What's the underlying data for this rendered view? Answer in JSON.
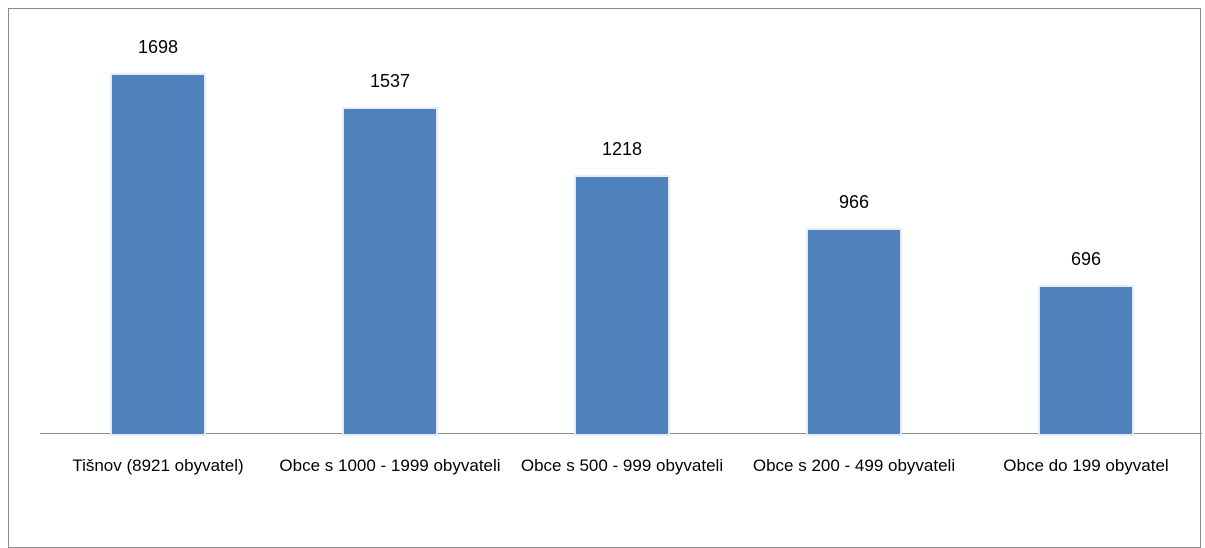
{
  "chart_data": {
    "type": "bar",
    "categories": [
      "Tišnov (8921 obyvatel)",
      "Obce s 1000 - 1999 obyvateli",
      "Obce s 500 - 999 obyvateli",
      "Obce s 200 - 499 obyvateli",
      "Obce do 199 obyvatel"
    ],
    "values": [
      1698,
      1537,
      1218,
      966,
      696
    ],
    "color": "#4f81bd"
  }
}
